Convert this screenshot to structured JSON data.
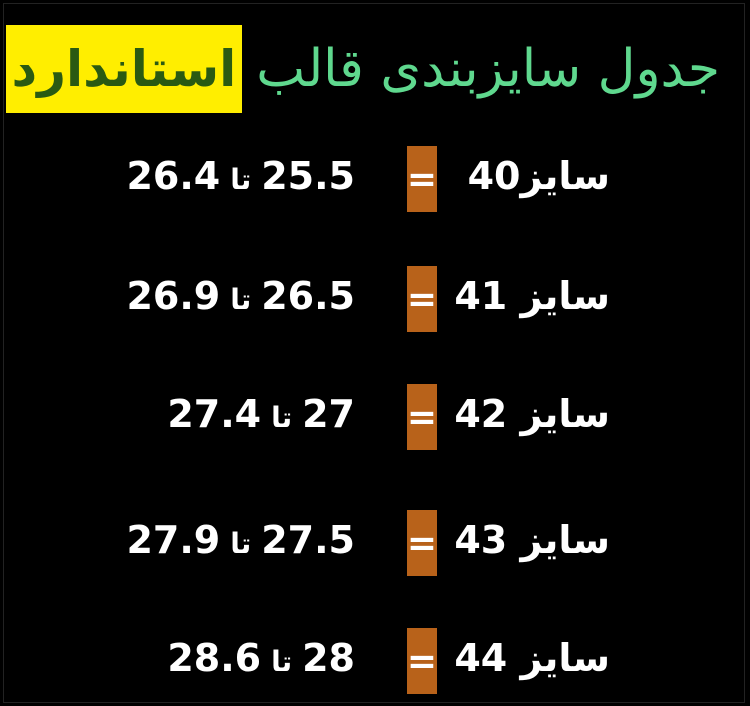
{
  "title": {
    "main": "جدول سایزبندی قالب",
    "highlight": "استاندارد"
  },
  "colors": {
    "title": "#5fd88e",
    "highlight_bg": "#ffee00",
    "highlight_text": "#2a5a12",
    "equals_box": "#b8621a",
    "background": "#000000"
  },
  "rows": [
    {
      "size": "سایز40",
      "equals": "=",
      "from": "25.5",
      "to_word": "تا",
      "to": "26.4"
    },
    {
      "size": "سایز 41",
      "equals": "=",
      "from": "26.5",
      "to_word": "تا",
      "to": "26.9"
    },
    {
      "size": "سایز 42",
      "equals": "=",
      "from": "27",
      "to_word": "تا",
      "to": "27.4"
    },
    {
      "size": "سایز 43",
      "equals": "=",
      "from": "27.5",
      "to_word": "تا",
      "to": "27.9"
    },
    {
      "size": "سایز 44",
      "equals": "=",
      "from": "28",
      "to_word": "تا",
      "to": "28.6"
    }
  ]
}
